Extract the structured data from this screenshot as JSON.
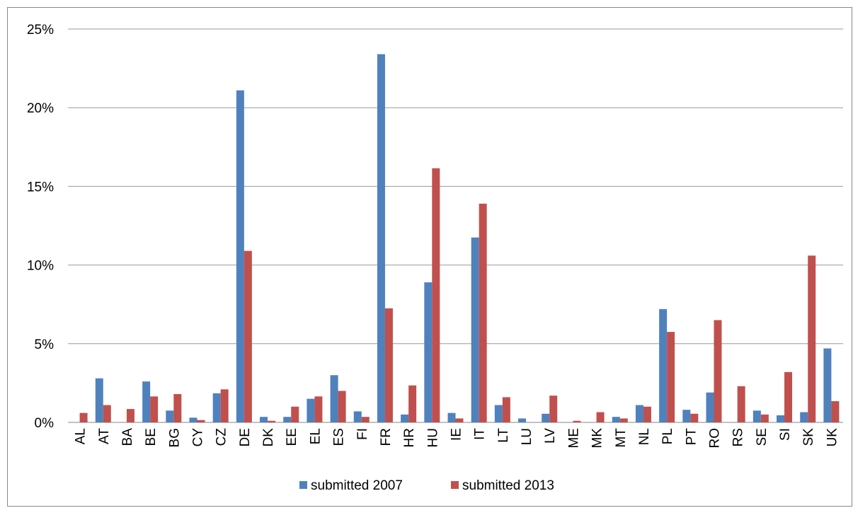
{
  "chart_data": {
    "type": "bar",
    "title": "",
    "xlabel": "",
    "ylabel": "",
    "ylim": [
      0,
      25
    ],
    "y_ticks": [
      "0%",
      "5%",
      "10%",
      "15%",
      "20%",
      "25%"
    ],
    "grid": true,
    "legend_position": "bottom",
    "categories": [
      "AL",
      "AT",
      "BA",
      "BE",
      "BG",
      "CY",
      "CZ",
      "DE",
      "DK",
      "EE",
      "EL",
      "ES",
      "FI",
      "FR",
      "HR",
      "HU",
      "IE",
      "IT",
      "LT",
      "LU",
      "LV",
      "ME",
      "MK",
      "MT",
      "NL",
      "PL",
      "PT",
      "RO",
      "RS",
      "SE",
      "SI",
      "SK",
      "UK"
    ],
    "series": [
      {
        "name": "submitted 2007",
        "color": "#4f81bd",
        "values": [
          0,
          2.8,
          0,
          2.6,
          0.75,
          0.3,
          1.85,
          21.1,
          0.35,
          0.35,
          1.5,
          3.0,
          0.7,
          23.4,
          0.5,
          8.9,
          0.6,
          11.75,
          1.1,
          0.25,
          0.55,
          0,
          0,
          0.35,
          1.1,
          7.2,
          0.8,
          1.9,
          0,
          0.75,
          0.45,
          0.65,
          4.7
        ]
      },
      {
        "name": "submitted 2013",
        "color": "#c0504d",
        "values": [
          0.6,
          1.1,
          0.85,
          1.65,
          1.8,
          0.15,
          2.1,
          10.9,
          0.1,
          1.0,
          1.65,
          2.0,
          0.35,
          7.25,
          2.35,
          16.15,
          0.25,
          13.9,
          1.6,
          0,
          1.7,
          0.1,
          0.65,
          0.25,
          1.0,
          5.75,
          0.55,
          6.5,
          2.3,
          0.5,
          3.2,
          10.6,
          1.35
        ]
      }
    ]
  }
}
